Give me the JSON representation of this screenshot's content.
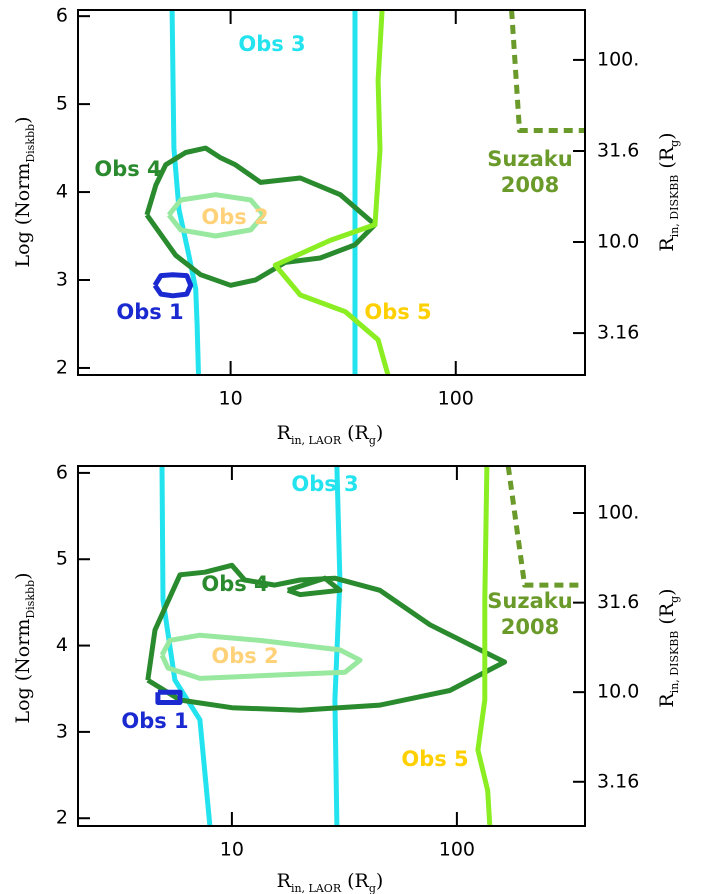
{
  "chart_data": [
    {
      "type": "line",
      "xscale": "log",
      "y2scale": "log",
      "xlabel": [
        {
          "text": "R"
        },
        {
          "text": "in, LAOR",
          "sub": true
        },
        {
          "text": " (R"
        },
        {
          "text": "g",
          "sub": true
        },
        {
          "text": ")"
        }
      ],
      "ylabel": [
        {
          "text": "Log (Norm"
        },
        {
          "text": "Diskbb",
          "sub": true
        },
        {
          "text": ")"
        }
      ],
      "y2label": [
        {
          "text": "R"
        },
        {
          "text": "in, DISKBB",
          "sub": true
        },
        {
          "text": " (R"
        },
        {
          "text": "g",
          "sub": true
        },
        {
          "text": ")"
        }
      ],
      "xlim": [
        2.1,
        375
      ],
      "ylim": [
        1.92,
        6.07
      ],
      "y2lim": [
        1.86,
        188
      ],
      "xticks": [
        10,
        100
      ],
      "yticks": [
        2,
        3,
        4,
        5,
        6
      ],
      "y2ticks": [
        {
          "value": 100,
          "label": "100."
        },
        31.6,
        {
          "value": 10,
          "label": "10.0"
        },
        3.16
      ],
      "series": [
        {
          "name": [
            "Obs 3"
          ],
          "color": "#22e3ee",
          "label_color": "#22e3ee",
          "x": [
            5.5,
            5.6,
            5.9,
            6.5,
            7.0,
            7.1,
            7.2,
            null,
            35.7,
            35.7
          ],
          "y": [
            6.07,
            4.5,
            3.8,
            3.3,
            2.9,
            2.5,
            1.92,
            null,
            6.07,
            1.92
          ]
        },
        {
          "name": [
            "Obs 4"
          ],
          "color": "#2a8a2e",
          "label_color": "#2a8a2e",
          "x": [
            4.25,
            4.66,
            5.15,
            6.32,
            7.75,
            9.03,
            10.5,
            13.6,
            20.4,
            30.7,
            43.8,
            35.7,
            25.0,
            17.5,
            12.9,
            10,
            7.36,
            5.71,
            4.25
          ],
          "y": [
            3.74,
            4.08,
            4.31,
            4.45,
            4.5,
            4.39,
            4.31,
            4.11,
            4.16,
            3.97,
            3.63,
            3.4,
            3.25,
            3.2,
            3.0,
            2.94,
            3.06,
            3.28,
            3.74
          ]
        },
        {
          "name": [
            "Obs 2"
          ],
          "color": "#98e8a0",
          "label_color": "#ffd27a",
          "x": [
            5.32,
            6.01,
            8.58,
            12.3,
            14.0,
            12.3,
            8.58,
            6.01,
            5.32
          ],
          "y": [
            3.74,
            3.91,
            3.97,
            3.91,
            3.74,
            3.57,
            3.5,
            3.57,
            3.74
          ]
        },
        {
          "name": [
            "Obs 1"
          ],
          "color": "#1a2ad0",
          "label_color": "#1a2ad0",
          "x": [
            4.61,
            4.9,
            5.53,
            6.39,
            6.65,
            6.39,
            5.53,
            4.9,
            4.61
          ],
          "y": [
            2.94,
            3.05,
            3.06,
            3.05,
            2.94,
            2.84,
            2.82,
            2.84,
            2.94
          ]
        },
        {
          "name": [
            "Obs 5"
          ],
          "color": "#8aee22",
          "label_color": "#ffd000",
          "x": [
            47.1,
            45.2,
            46.1,
            43.8,
            27.7,
            15.8,
            20.4,
            32.3,
            45.2,
            50.0
          ],
          "y": [
            6.07,
            5.27,
            4.48,
            3.63,
            3.45,
            3.17,
            2.83,
            2.64,
            2.32,
            1.92
          ]
        },
        {
          "name": [
            "Suzaku",
            "2008"
          ],
          "color": "#6a9a2a",
          "label_color": "#6a9a2a",
          "dash": true,
          "x": [
            177,
            192,
            375
          ],
          "y": [
            6.07,
            4.7,
            4.7
          ]
        }
      ]
    },
    {
      "type": "line",
      "xscale": "log",
      "y2scale": "log",
      "xlabel": [
        {
          "text": "R"
        },
        {
          "text": "in, LAOR",
          "sub": true
        },
        {
          "text": " (R"
        },
        {
          "text": "g",
          "sub": true
        },
        {
          "text": ")"
        }
      ],
      "ylabel": [
        {
          "text": "Log (Norm"
        },
        {
          "text": "Diskbb",
          "sub": true
        },
        {
          "text": ")"
        }
      ],
      "y2label": [
        {
          "text": "R"
        },
        {
          "text": "in, DISKBB",
          "sub": true
        },
        {
          "text": " (R"
        },
        {
          "text": "g",
          "sub": true
        },
        {
          "text": ")"
        }
      ],
      "xlim": [
        2.07,
        371
      ],
      "ylim": [
        1.91,
        6.08
      ],
      "y2lim": [
        1.79,
        183
      ],
      "xticks": [
        10,
        100
      ],
      "yticks": [
        2,
        3,
        4,
        5,
        6
      ],
      "y2ticks": [
        {
          "value": 100,
          "label": "100."
        },
        31.6,
        {
          "value": 10,
          "label": "10.0"
        },
        3.16
      ],
      "series": [
        {
          "name": [
            "Obs 3"
          ],
          "color": "#22e3ee",
          "label_color": "#22e3ee",
          "x": [
            4.89,
            4.94,
            5.58,
            7.21,
            7.98,
            null,
            29.3,
            30.2,
            28.7,
            29.3
          ],
          "y": [
            6.08,
            4.53,
            3.6,
            3.14,
            1.91,
            null,
            6.08,
            4.76,
            3.37,
            1.91
          ]
        },
        {
          "name": [
            "Obs 4"
          ],
          "color": "#2a8a2e",
          "label_color": "#2a8a2e",
          "x": [
            4.23,
            4.55,
            5.88,
            7.59,
            10,
            11.4,
            15.5,
            20.1,
            28.7,
            45.5,
            75.9,
            114,
            163,
            114,
            93,
            45.5,
            20.1,
            10,
            5.88,
            4.23,
            null,
            17.7,
            25.9,
            30.2,
            20.1,
            17.7
          ],
          "y": [
            3.6,
            4.18,
            4.82,
            4.85,
            4.93,
            4.76,
            4.7,
            4.76,
            4.78,
            4.64,
            4.24,
            4.01,
            3.81,
            3.6,
            3.48,
            3.31,
            3.25,
            3.28,
            3.37,
            3.6,
            null,
            4.64,
            4.78,
            4.64,
            4.59,
            4.64
          ]
        },
        {
          "name": [
            "Obs 2"
          ],
          "color": "#98e8a0",
          "label_color": "#ffd27a",
          "x": [
            4.89,
            5.3,
            7.21,
            13.3,
            30.2,
            37.1,
            31.8,
            16.3,
            7.21,
            5.2,
            4.89
          ],
          "y": [
            3.89,
            4.06,
            4.12,
            4.06,
            3.95,
            3.83,
            3.69,
            3.66,
            3.62,
            3.74,
            3.89
          ]
        },
        {
          "name": [
            "Obs 1"
          ],
          "color": "#1a2ad0",
          "label_color": "#1a2ad0",
          "x": [
            4.69,
            5.88,
            5.88,
            4.69,
            4.69
          ],
          "y": [
            3.46,
            3.46,
            3.34,
            3.34,
            3.46
          ]
        },
        {
          "name": [
            "Obs 5"
          ],
          "color": "#8aee22",
          "label_color": "#ffd000",
          "x": [
            136,
            133,
            133,
            124,
            137,
            140
          ],
          "y": [
            6.08,
            4.53,
            3.37,
            2.79,
            2.32,
            1.91
          ]
        },
        {
          "name": [
            "Suzaku",
            "2008"
          ],
          "color": "#6a9a2a",
          "label_color": "#6a9a2a",
          "dash": true,
          "x": [
            169,
            200,
            371
          ],
          "y": [
            6.08,
            4.7,
            4.7
          ]
        }
      ]
    }
  ]
}
